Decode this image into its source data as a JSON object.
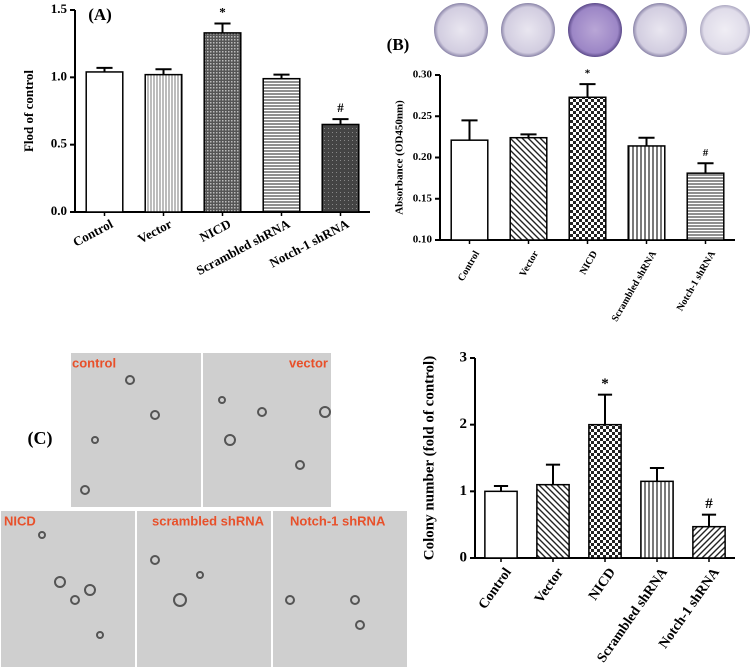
{
  "chart_data": [
    {
      "type": "bar",
      "panel_label": "(A)",
      "ylabel": "Flod of control",
      "categories": [
        "Control",
        "Vector",
        "NICD",
        "Scrambled shRNA",
        "Notch-1 shRNA"
      ],
      "values": [
        1.04,
        1.02,
        1.33,
        0.99,
        0.65
      ],
      "errors": [
        0.03,
        0.04,
        0.07,
        0.03,
        0.04
      ],
      "markers": [
        null,
        null,
        "*",
        null,
        "#"
      ],
      "patterns": [
        "none",
        "vfine",
        "dense",
        "hlines",
        "dark"
      ],
      "ylim": [
        0,
        1.5
      ],
      "yticks": [
        {
          "value": 0,
          "label": "0.0"
        },
        0.5,
        {
          "value": 1,
          "label": "1.0"
        },
        1.5
      ]
    },
    {
      "type": "bar",
      "panel_label": "(B)",
      "ylabel": "Absorbance (OD450nm)",
      "categories": [
        "Control",
        "Vector",
        "NICD",
        "Scrambled shRNA",
        "Notch-1 shRNA"
      ],
      "values": [
        0.221,
        0.224,
        0.273,
        0.214,
        0.181
      ],
      "errors": [
        0.024,
        0.004,
        0.016,
        0.01,
        0.012
      ],
      "markers": [
        null,
        null,
        "*",
        null,
        "#"
      ],
      "patterns": [
        "none",
        "diag",
        "check",
        "vlines",
        "hlines"
      ],
      "ylim": [
        0.1,
        0.3
      ],
      "yticks": [
        {
          "value": 0.1,
          "label": "0.10"
        },
        0.15,
        {
          "value": 0.2,
          "label": "0.20"
        },
        0.25,
        {
          "value": 0.3,
          "label": "0.30"
        }
      ]
    },
    {
      "type": "bar",
      "ylabel": "Colony number (fold of control)",
      "categories": [
        "Control",
        "Vector",
        "NICD",
        "Scrambled shRNA",
        "Notch-1 shRNA"
      ],
      "values": [
        1.0,
        1.1,
        2.0,
        1.15,
        0.47
      ],
      "errors": [
        0.08,
        0.3,
        0.45,
        0.2,
        0.18
      ],
      "markers": [
        null,
        null,
        "*",
        null,
        "#"
      ],
      "patterns": [
        "none",
        "diag",
        "check",
        "vlines",
        "diag2"
      ],
      "ylim": [
        0,
        3
      ],
      "yticks": [
        0,
        1,
        2,
        3
      ]
    }
  ],
  "micrographs": {
    "panel_label": "(C)",
    "labels": [
      "control",
      "vector",
      "NICD",
      "scrambled shRNA",
      "Notch-1 shRNA"
    ]
  }
}
